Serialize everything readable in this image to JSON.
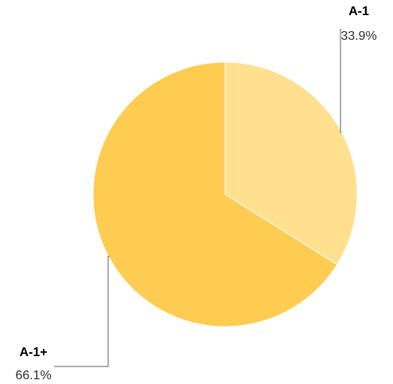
{
  "chart_data": {
    "type": "pie",
    "title": "",
    "slices": [
      {
        "label": "A-1",
        "value": 33.9,
        "display": "33.9%",
        "color": "#FFE08E"
      },
      {
        "label": "A-1+",
        "value": 66.1,
        "display": "66.1%",
        "color": "#FFCC52"
      }
    ],
    "start_angle_deg": 0,
    "direction": "clockwise",
    "legend": "none",
    "labels": "outside with leader lines"
  }
}
